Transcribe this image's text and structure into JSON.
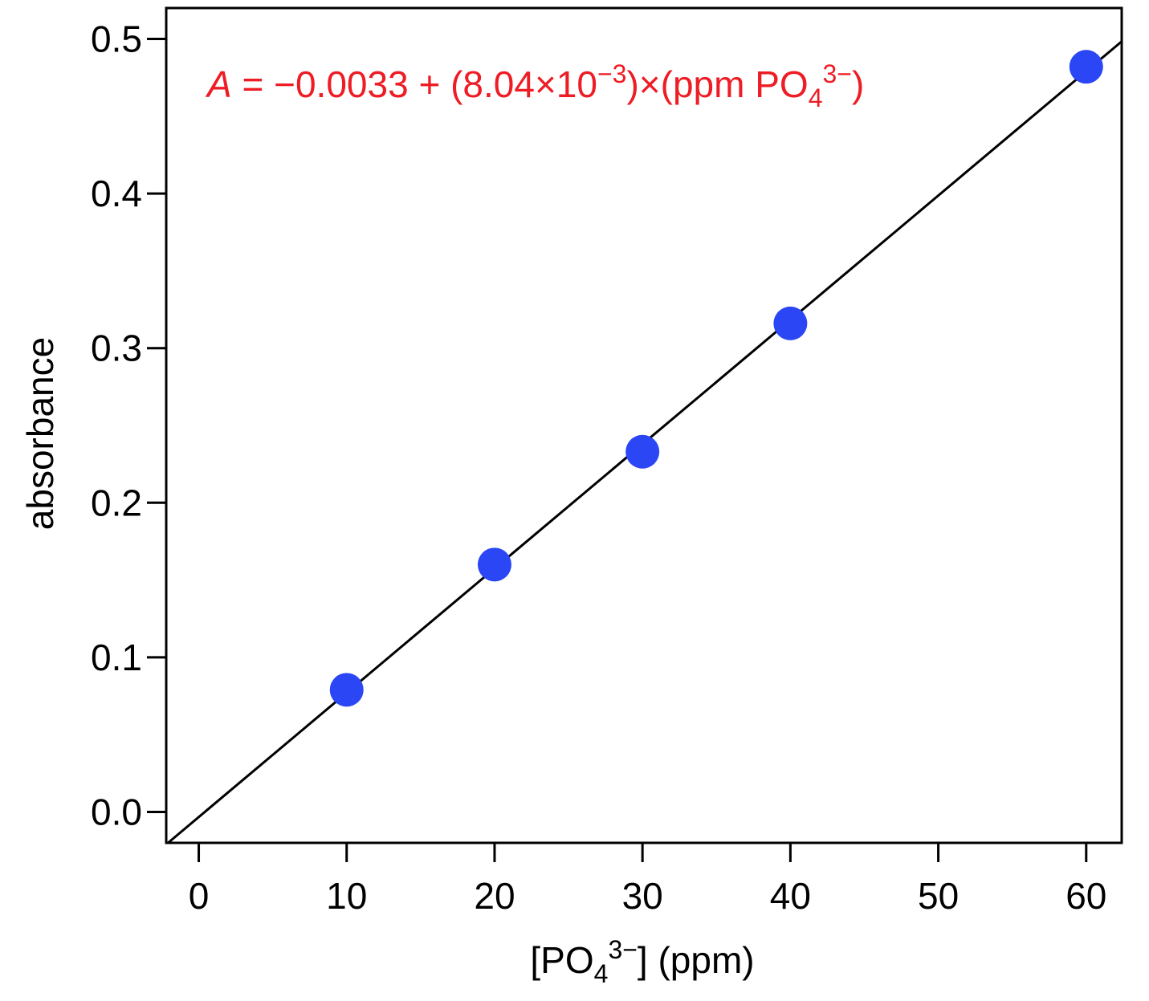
{
  "chart_data": {
    "type": "scatter",
    "title": "",
    "xlabel": {
      "prefix": "[PO",
      "sub": "4",
      "sup": "3−",
      "suffix": "] (ppm)"
    },
    "ylabel": "absorbance",
    "xlim": [
      -2.2,
      62.4
    ],
    "ylim": [
      -0.02,
      0.52
    ],
    "xticks": [
      0,
      10,
      20,
      30,
      40,
      50,
      60
    ],
    "xtick_labels": [
      "0",
      "10",
      "20",
      "30",
      "40",
      "50",
      "60"
    ],
    "yticks": [
      0.0,
      0.1,
      0.2,
      0.3,
      0.4,
      0.5
    ],
    "ytick_labels": [
      "0.0",
      "0.1",
      "0.2",
      "0.3",
      "0.4",
      "0.5"
    ],
    "grid": false,
    "series": [
      {
        "type": "scatter",
        "x": [
          10,
          20,
          30,
          40,
          60
        ],
        "y": [
          0.079,
          0.16,
          0.233,
          0.316,
          0.482
        ],
        "color": "#2b46f5"
      }
    ],
    "fit_line": {
      "intercept": -0.0033,
      "slope": 0.00804,
      "color": "#000000"
    },
    "annotation": {
      "color": "#ee1c24",
      "var": "A",
      "part1": " = −0.0033 + (8.04×10",
      "exp": "−3",
      "part2": ")×(ppm PO",
      "sub": "4",
      "sup": "3−",
      "part3": ")"
    }
  }
}
